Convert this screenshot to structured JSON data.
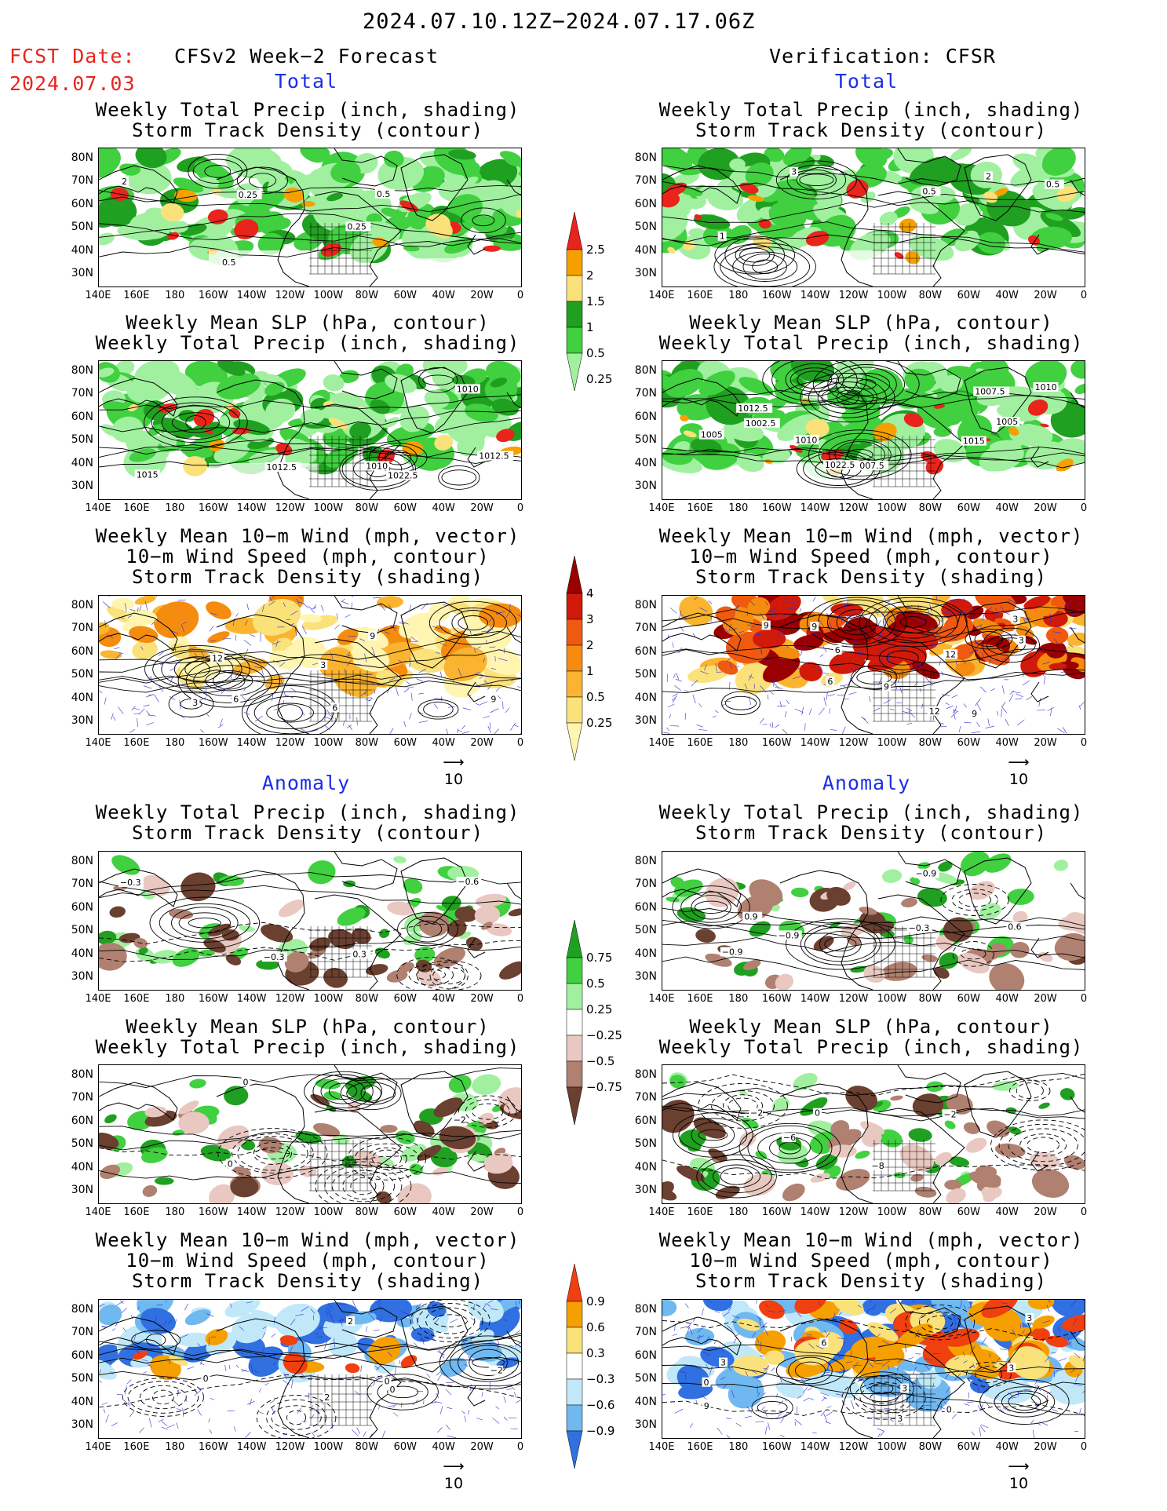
{
  "header": {
    "date_range": "2024.07.10.12Z−2024.07.17.06Z",
    "fcst_label": "FCST Date:",
    "fcst_date": "2024.07.03",
    "left_title": "CFSv2 Week−2 Forecast",
    "right_title": "Verification: CFSR"
  },
  "sections": {
    "total": "Total",
    "anomaly": "Anomaly"
  },
  "panel_titles": {
    "precip_storm": [
      "Weekly Total Precip (inch, shading)",
      "Storm Track Density (contour)"
    ],
    "slp_precip": [
      "Weekly Mean SLP (hPa, contour)",
      "Weekly Total Precip (inch, shading)"
    ],
    "wind_storm": [
      "Weekly Mean 10−m Wind (mph, vector)",
      "10−m Wind Speed (mph, contour)",
      "Storm Track Density (shading)"
    ]
  },
  "axes": {
    "lat_labels": [
      "80N",
      "70N",
      "60N",
      "50N",
      "40N",
      "30N"
    ],
    "lon_labels": [
      "140E",
      "160E",
      "180",
      "160W",
      "140W",
      "120W",
      "100W",
      "80W",
      "60W",
      "40W",
      "20W",
      "0"
    ]
  },
  "reference_vector": "10",
  "colorbars": {
    "precip_total": {
      "labels": [
        "2.5",
        "2",
        "1.5",
        "1",
        "0.5",
        "0.25"
      ],
      "colors": [
        "#e8241c",
        "#f5a000",
        "#fae17a",
        "#20a020",
        "#40d040",
        "#a0f0a0"
      ]
    },
    "storm_total": {
      "labels": [
        "4",
        "3",
        "2",
        "1",
        "0.5",
        "0.25"
      ],
      "colors": [
        "#9a0000",
        "#d21a0a",
        "#f05a10",
        "#f58c10",
        "#fab430",
        "#fae17a",
        "#fff5b0"
      ]
    },
    "precip_anom": {
      "labels": [
        "0.75",
        "0.5",
        "0.25",
        "−0.25",
        "−0.5",
        "−0.75"
      ],
      "colors": [
        "#20a020",
        "#40d040",
        "#a0f0a0",
        "#ffffff",
        "#e8c8c0",
        "#b08070",
        "#6a4030"
      ]
    },
    "storm_anom": {
      "labels": [
        "0.9",
        "0.6",
        "0.3",
        "−0.3",
        "−0.6",
        "−0.9"
      ],
      "colors": [
        "#f04010",
        "#f5a000",
        "#fae17a",
        "#ffffff",
        "#c0e8f8",
        "#70b8f0",
        "#3070e0"
      ]
    }
  },
  "contour_labels": {
    "fc_total_precip": [
      "0.5",
      "0.25",
      "0.25",
      "0.5",
      "2"
    ],
    "ver_total_precip": [
      "0.5",
      "0.5",
      "1",
      "2",
      "3"
    ],
    "fc_total_slp": [
      "1012.5",
      "1010",
      "1012.5",
      "1010",
      "1015",
      "1022.5"
    ],
    "ver_total_slp": [
      "1005",
      "1007.5",
      "1010",
      "1002.5",
      "1010",
      "1007.5",
      "1005",
      "1012.5",
      "1015",
      "1022.5"
    ],
    "fc_total_wind": [
      "3",
      "6",
      "3",
      "9",
      "12",
      "9",
      "6"
    ],
    "ver_total_wind": [
      "9",
      "6",
      "3",
      "6",
      "9",
      "3",
      "9",
      "12",
      "9",
      "12"
    ],
    "fc_anom_precip": [
      "−0.6",
      "−0.3",
      "−0.3",
      "0.3"
    ],
    "ver_anom_precip": [
      "−0.9",
      "−0.3",
      "0.6",
      "0.9",
      "−0.9",
      "−0.9"
    ],
    "fc_anom_slp": [
      "−2",
      "0",
      "0"
    ],
    "ver_anom_slp": [
      "−6",
      "−8",
      "−2",
      "0",
      "−2"
    ],
    "fc_anom_wind": [
      "0",
      "2",
      "0",
      "2",
      "0",
      "−2"
    ],
    "ver_anom_wind": [
      "3",
      "3",
      "3",
      "6",
      "0",
      "3",
      "0",
      "3",
      "9"
    ]
  }
}
